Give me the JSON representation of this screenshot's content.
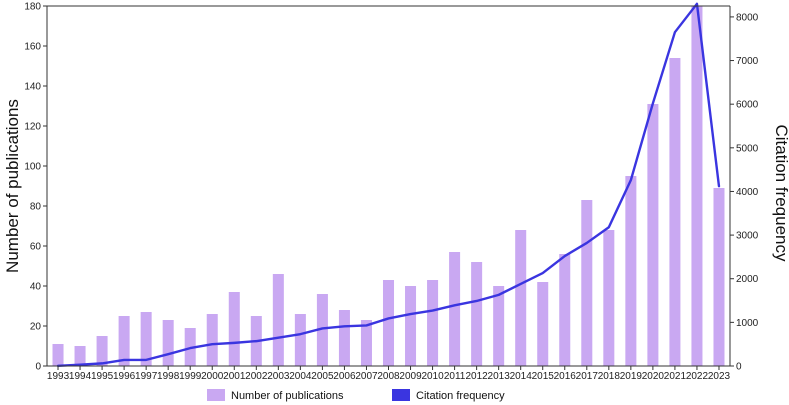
{
  "chart_data": {
    "type": "bar",
    "categories": [
      "1993",
      "1994",
      "1995",
      "1996",
      "1997",
      "1998",
      "1999",
      "2000",
      "2001",
      "2002",
      "2003",
      "2004",
      "2005",
      "2006",
      "2007",
      "2008",
      "2009",
      "2010",
      "2011",
      "2012",
      "2013",
      "2014",
      "2015",
      "2016",
      "2017",
      "2018",
      "2019",
      "2020",
      "2021",
      "2022",
      "2023"
    ],
    "series": [
      {
        "name": "Number of publications",
        "kind": "bar",
        "axis": "left",
        "color": "#c9a8f2",
        "values": [
          11,
          10,
          15,
          25,
          27,
          23,
          19,
          26,
          37,
          25,
          46,
          26,
          36,
          28,
          23,
          43,
          40,
          43,
          57,
          52,
          40,
          68,
          42,
          56,
          83,
          68,
          95,
          131,
          154,
          180,
          89
        ]
      },
      {
        "name": "Citation frequency",
        "kind": "line",
        "axis": "right",
        "color": "#3a35e0",
        "values": [
          5,
          30,
          60,
          140,
          140,
          270,
          410,
          500,
          530,
          570,
          650,
          730,
          860,
          910,
          930,
          1090,
          1190,
          1270,
          1390,
          1490,
          1630,
          1880,
          2130,
          2520,
          2820,
          3180,
          4260,
          6020,
          7650,
          8300,
          4120
        ]
      }
    ],
    "ylabel": "Number of publications",
    "ylabel_right": "Citation frequency",
    "ylim": [
      0,
      180
    ],
    "ylim_right": [
      0,
      8250
    ],
    "yticks": [
      "0",
      "20",
      "40",
      "60",
      "80",
      "100",
      "120",
      "140",
      "160",
      "180"
    ],
    "yticks_right": [
      "0",
      "1000",
      "2000",
      "3000",
      "4000",
      "5000",
      "6000",
      "7000",
      "8000"
    ],
    "legend_position": "bottom-center",
    "grid": false
  }
}
